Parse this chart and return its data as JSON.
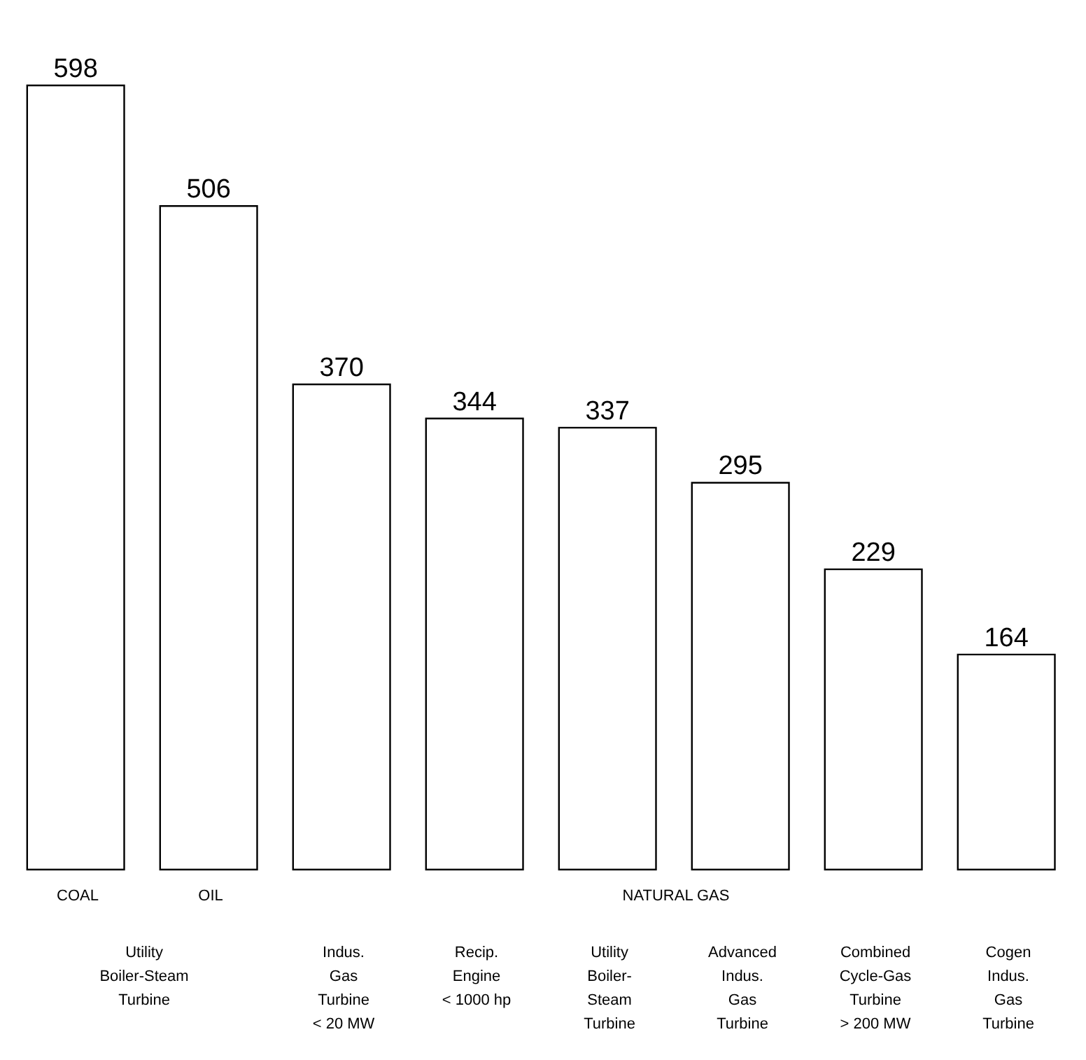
{
  "chart_data": {
    "type": "bar",
    "categories": [
      null,
      null,
      "Indus.\nGas\nTurbine\n< 20 MW",
      "Recip.\nEngine\n< 1000 hp",
      "Utility\nBoiler-\nSteam\nTurbine",
      "Advanced\nIndus.\nGas\nTurbine",
      "Combined\nCycle-Gas\nTurbine\n> 200 MW",
      "Cogen\nIndus.\nGas\nTurbine"
    ],
    "values": [
      598,
      506,
      370,
      344,
      337,
      295,
      229,
      164
    ],
    "color": "#ffffff",
    "data_labels": true,
    "annotations": [
      "COAL",
      "OIL",
      "NATURAL GAS",
      "Utility\nBoiler-Steam\nTurbine"
    ]
  }
}
